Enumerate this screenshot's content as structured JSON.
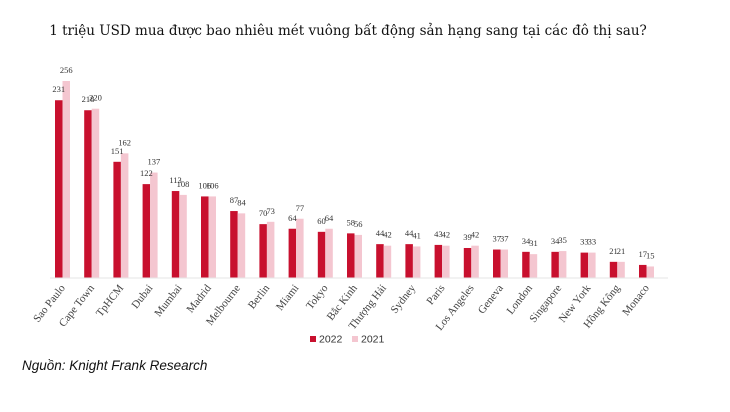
{
  "chart_data": {
    "type": "bar",
    "title": "1 triệu USD mua được bao nhiêu mét vuông bất động sản hạng sang tại các đô thị sau?",
    "xlabel": "",
    "ylabel": "",
    "ylim": [
      0,
      270
    ],
    "grid": false,
    "legend_position": "bottom-center",
    "categories": [
      "Sao Paulo",
      "Cape Town",
      "TpHCM",
      "Dubai",
      "Mumbai",
      "Madrid",
      "Melbourne",
      "Berlin",
      "Miami",
      "Tokyo",
      "Bắc Kinh",
      "Thượng Hải",
      "Sydney",
      "Paris",
      "Los Angeles",
      "Geneva",
      "London",
      "Singapore",
      "New York",
      "Hồng Kông",
      "Monaco"
    ],
    "series": [
      {
        "name": "2022",
        "color": "#c8102e",
        "values": [
          231,
          218,
          151,
          122,
          113,
          106,
          87,
          70,
          64,
          60,
          58,
          44,
          44,
          43,
          39,
          37,
          34,
          34,
          33,
          21,
          17
        ]
      },
      {
        "name": "2021",
        "color": "#f4c6d0",
        "values": [
          256,
          220,
          162,
          137,
          108,
          106,
          84,
          73,
          77,
          64,
          56,
          42,
          41,
          42,
          42,
          37,
          31,
          35,
          33,
          21,
          15
        ]
      }
    ]
  },
  "source": "Nguồn: Knight Frank Research"
}
